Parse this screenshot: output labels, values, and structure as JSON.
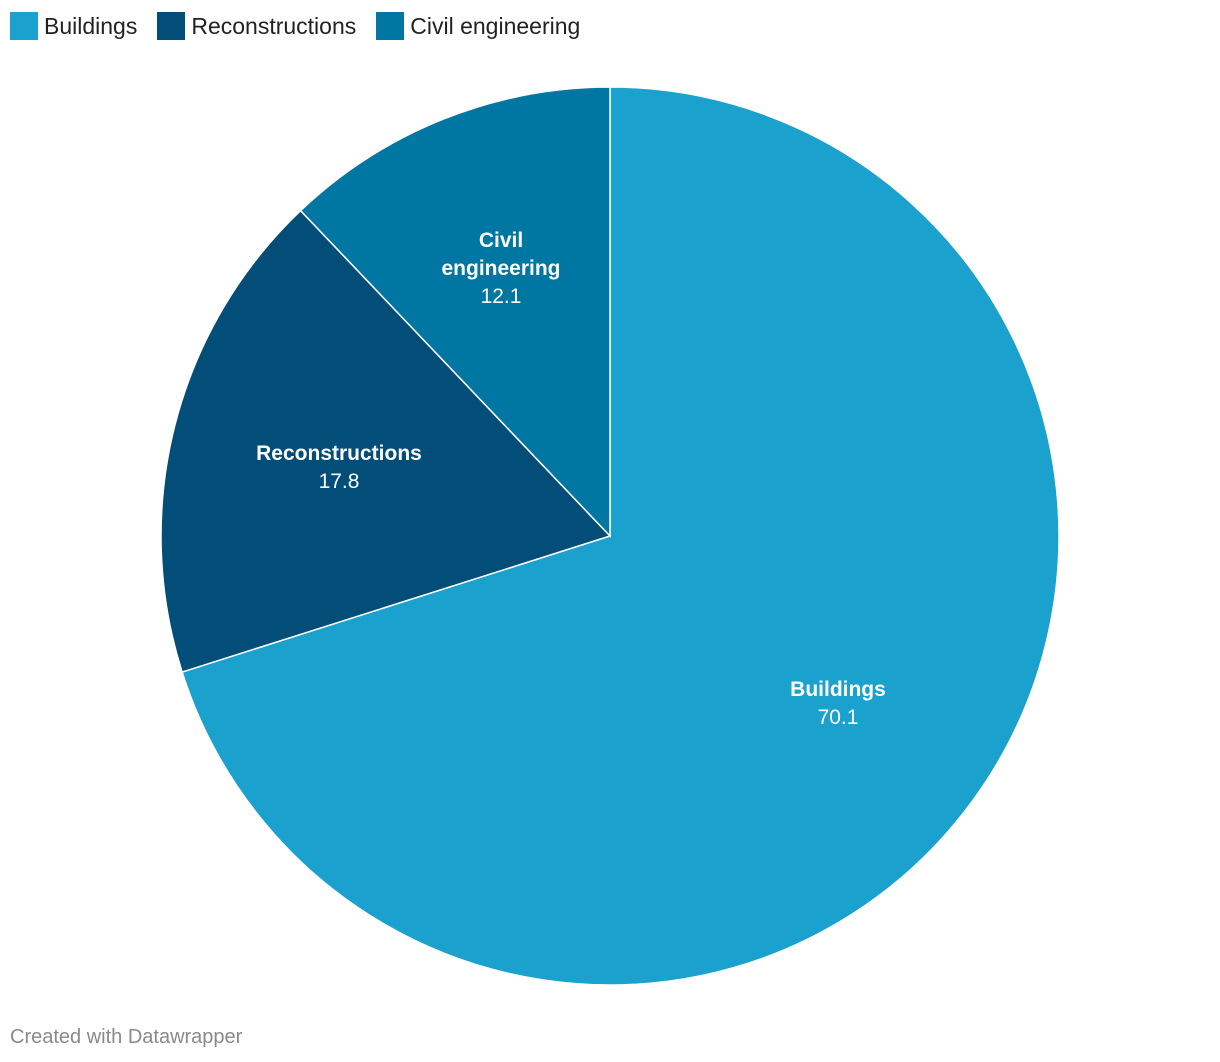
{
  "legend": [
    {
      "label": "Buildings",
      "color": "#1aa1ce"
    },
    {
      "label": "Reconstructions",
      "color": "#034e78"
    },
    {
      "label": "Civil engineering",
      "color": "#0077a2"
    }
  ],
  "chart_data": {
    "type": "pie",
    "slices": [
      {
        "label": "Buildings",
        "label_lines": [
          "Buildings"
        ],
        "value": 70.1,
        "display": "70.1",
        "color": "#1aa1ce"
      },
      {
        "label": "Reconstructions",
        "label_lines": [
          "Reconstructions"
        ],
        "value": 17.8,
        "display": "17.8",
        "color": "#034e78"
      },
      {
        "label": "Civil engineering",
        "label_lines": [
          "Civil",
          "engineering"
        ],
        "value": 12.1,
        "display": "12.1",
        "color": "#0077a2"
      }
    ]
  },
  "footer": {
    "credit": "Created with Datawrapper"
  }
}
